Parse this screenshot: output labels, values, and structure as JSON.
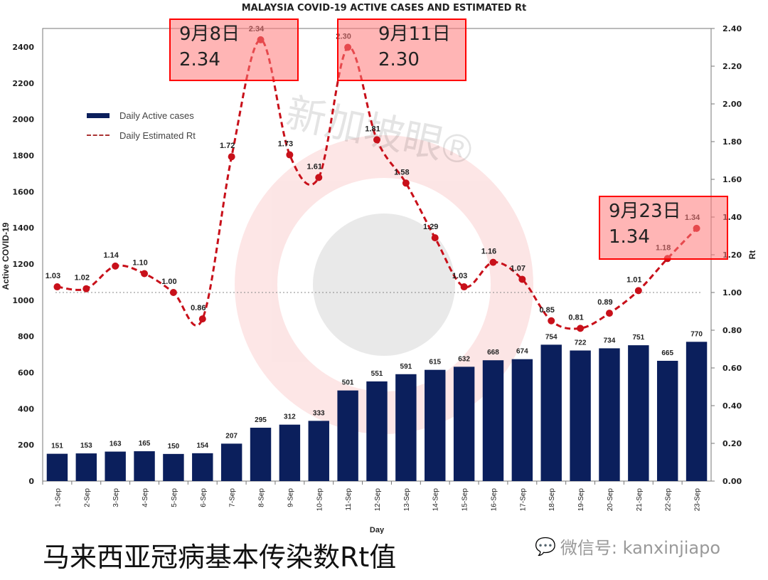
{
  "title": "MALAYSIA COVID-19 ACTIVE CASES AND ESTIMATED  Rt",
  "caption": "马来西亚冠病基本传染数Rt值",
  "watermark": {
    "text": "新加坡眼®",
    "wechat": "微信号: kanxinjiapo"
  },
  "legend": {
    "bars": "Daily Active cases",
    "line": "Daily Estimated Rt"
  },
  "callouts": [
    {
      "line1": "9月8日",
      "line2": "2.34"
    },
    {
      "line1": "9月11日",
      "line2": "2.30"
    },
    {
      "line1": "9月23日",
      "line2": "1.34"
    }
  ],
  "colors": {
    "bar": "#0b1f5c",
    "line": "#c8101a",
    "callout_border": "#ff0000"
  },
  "chart_data": {
    "type": "bar",
    "title": "MALAYSIA COVID-19 ACTIVE CASES AND ESTIMATED  Rt",
    "xlabel": "Day",
    "ylabel": "Active COVID-19",
    "y2label": "Rt",
    "ylim": [
      0,
      2500
    ],
    "y2lim": [
      0,
      2.4
    ],
    "yticks": [
      0,
      200,
      400,
      600,
      800,
      1000,
      1200,
      1400,
      1600,
      1800,
      2000,
      2200,
      2400
    ],
    "y2ticks": [
      "0.00",
      "0.20",
      "0.40",
      "0.60",
      "0.80",
      "1.00",
      "1.20",
      "1.40",
      "1.60",
      "1.80",
      "2.00",
      "2.20",
      "2.40"
    ],
    "reference_line": 1.0,
    "categories": [
      "1-Sep",
      "2-Sep",
      "3-Sep",
      "4-Sep",
      "5-Sep",
      "6-Sep",
      "7-Sep",
      "8-Sep",
      "9-Sep",
      "10-Sep",
      "11-Sep",
      "12-Sep",
      "13-Sep",
      "14-Sep",
      "15-Sep",
      "16-Sep",
      "17-Sep",
      "18-Sep",
      "19-Sep",
      "20-Sep",
      "21-Sep",
      "22-Sep",
      "23-Sep"
    ],
    "series": [
      {
        "name": "Daily Active cases",
        "type": "bar",
        "axis": "left",
        "values": [
          151,
          153,
          163,
          165,
          150,
          154,
          207,
          295,
          312,
          333,
          501,
          551,
          591,
          615,
          632,
          668,
          674,
          754,
          722,
          734,
          751,
          665,
          770
        ]
      },
      {
        "name": "Daily Estimated Rt",
        "type": "line",
        "axis": "right",
        "values": [
          1.03,
          1.02,
          1.14,
          1.1,
          1.0,
          0.86,
          1.72,
          2.34,
          1.73,
          1.61,
          2.3,
          1.81,
          1.58,
          1.29,
          1.03,
          1.16,
          1.07,
          0.85,
          0.81,
          0.89,
          1.01,
          1.18,
          1.34
        ]
      }
    ],
    "grid": false,
    "legend_position": "upper-left"
  }
}
